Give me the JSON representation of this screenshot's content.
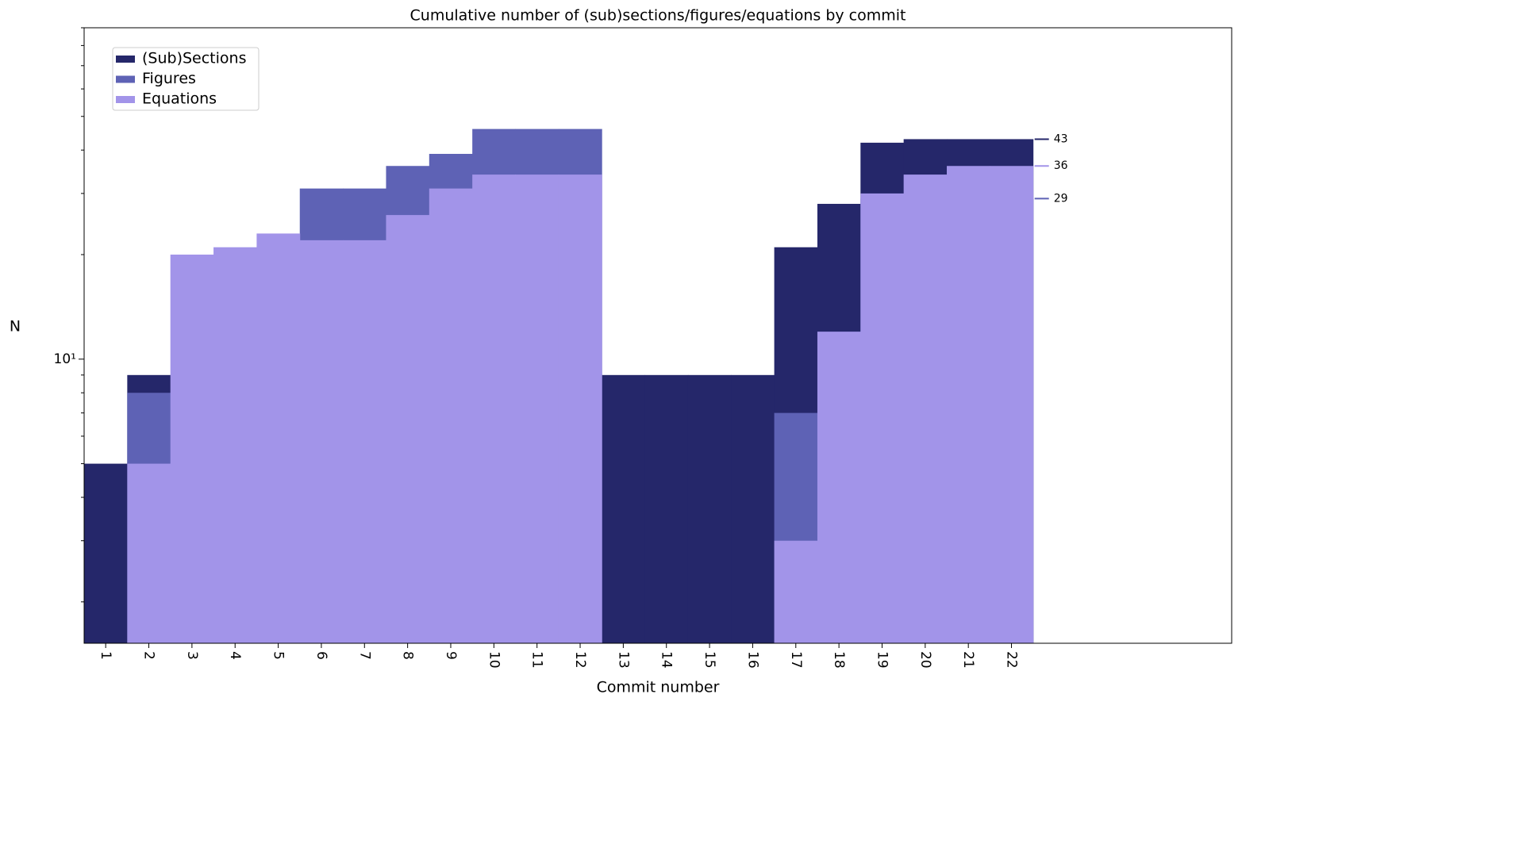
{
  "chart_data": {
    "type": "bar",
    "mode": "overlap",
    "title": "Cumulative number of (sub)sections/figures/equations by commit",
    "x_label": "Commit number",
    "y_label": "N",
    "categories": [
      "1",
      "2",
      "3",
      "4",
      "5",
      "6",
      "7",
      "8",
      "9",
      "10",
      "11",
      "12",
      "13",
      "14",
      "15",
      "16",
      "17",
      "18",
      "19",
      "20",
      "21",
      "22"
    ],
    "series": [
      {
        "name": "(Sub)Sections",
        "color": "#25276a",
        "values": [
          5,
          9,
          9,
          9,
          9,
          9,
          9,
          9,
          9,
          9,
          9,
          9,
          9,
          9,
          9,
          9,
          21,
          28,
          42,
          43,
          43,
          43
        ]
      },
      {
        "name": "Figures",
        "color": "#5e62b5",
        "values": [
          null,
          8,
          8,
          8,
          8,
          31,
          31,
          36,
          39,
          46,
          46,
          46,
          null,
          null,
          null,
          null,
          7,
          7,
          29,
          29,
          29,
          29
        ]
      },
      {
        "name": "Equations",
        "color": "#a294e9",
        "values": [
          null,
          5,
          20,
          21,
          23,
          22,
          22,
          26,
          31,
          34,
          34,
          34,
          null,
          null,
          null,
          null,
          3,
          12,
          30,
          34,
          36,
          36
        ]
      }
    ],
    "yscale": "log",
    "ylim": [
      1.52,
      90
    ],
    "yticks": [
      {
        "value": 10,
        "label": "10¹"
      }
    ],
    "yminorticks": [
      2,
      3,
      4,
      5,
      6,
      7,
      8,
      9,
      20,
      30,
      40,
      50,
      60,
      70,
      80,
      90
    ],
    "legend": "upper left",
    "end_labels": true
  }
}
